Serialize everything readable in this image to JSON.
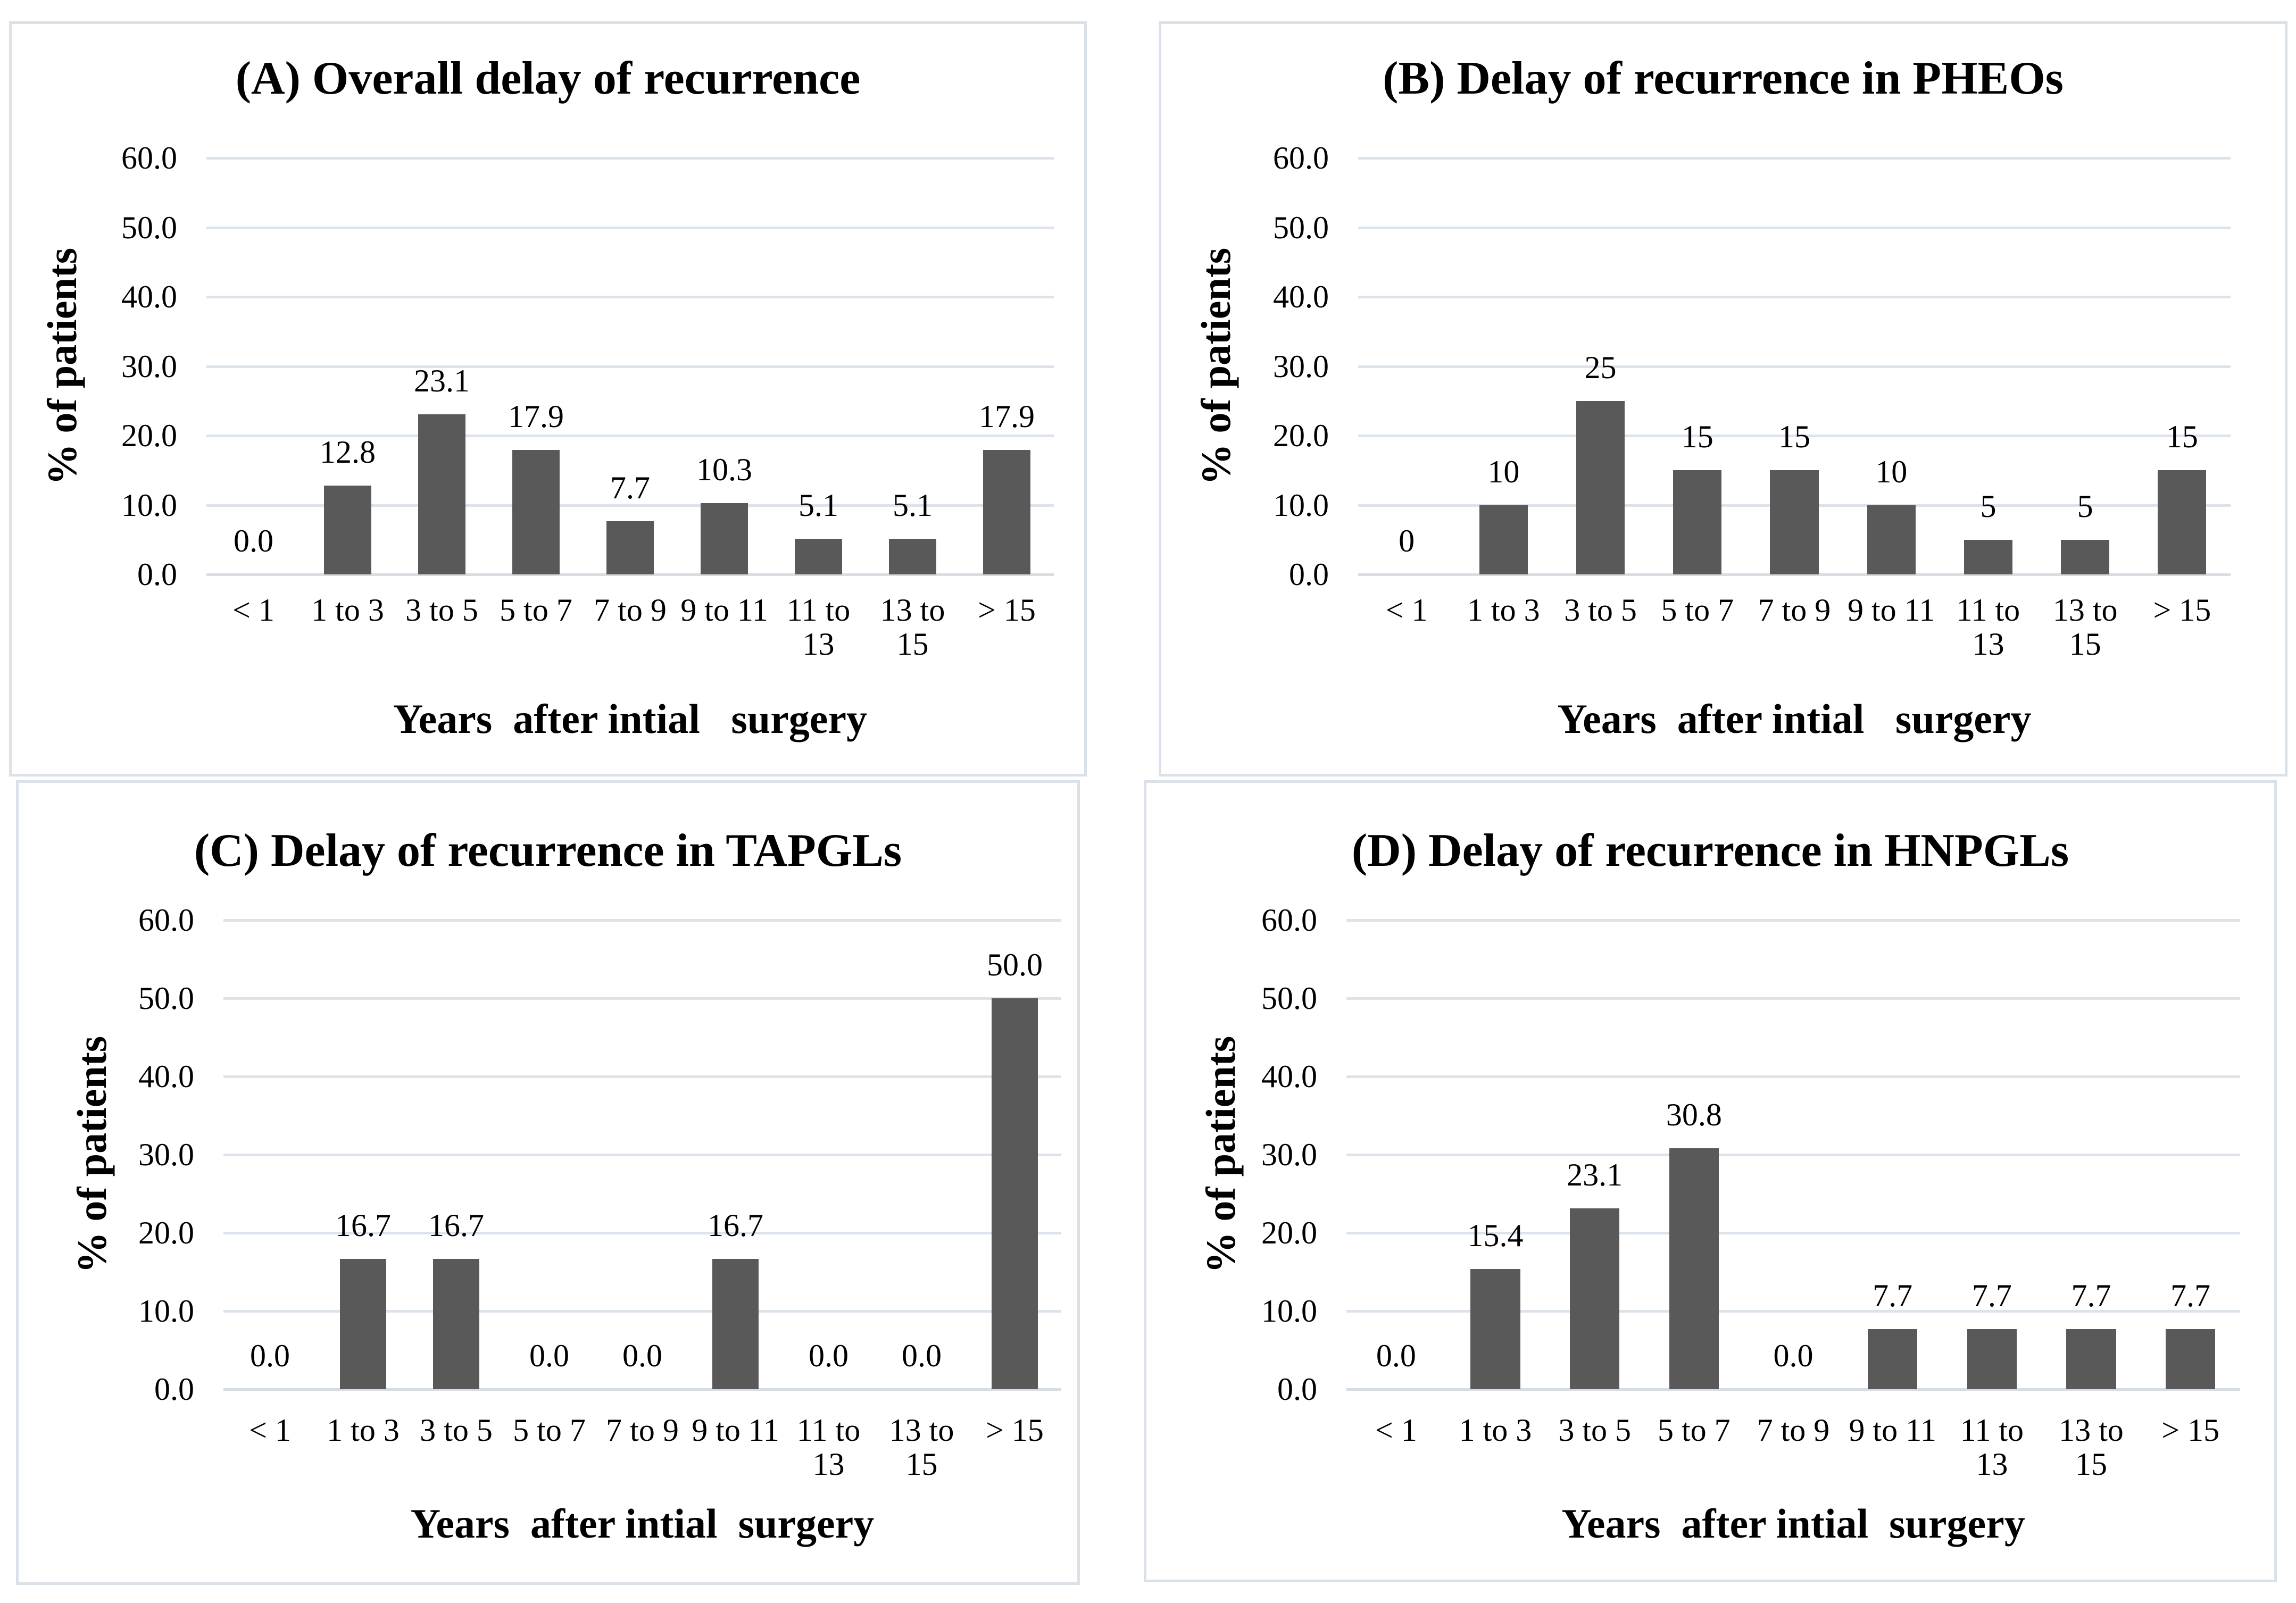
{
  "figure": {
    "background": "#ffffff"
  },
  "colors": {
    "bar": "#595959",
    "gridline": "#dce3eb",
    "baseline": "#d8dde3",
    "panel_border": "#dbe1e9",
    "text": "#000000"
  },
  "chart_data": [
    {
      "id": "A",
      "type": "bar",
      "title": "(A) Overall delay of recurrence",
      "ylabel": "% of patients",
      "xlabel": "Years  after intial   surgery",
      "ylim": [
        0,
        60
      ],
      "ytick_step": 10,
      "ytick_labels": [
        "60.0",
        "50.0",
        "40.0",
        "30.0",
        "20.0",
        "10.0",
        "0.0"
      ],
      "grid": true,
      "legend": false,
      "categories": [
        "< 1",
        "1 to 3",
        "3 to 5",
        "5 to 7",
        "7 to 9",
        "9 to 11",
        "11 to\n13",
        "13 to\n15",
        "> 15"
      ],
      "values": [
        0,
        12.8,
        23.1,
        17.9,
        7.7,
        10.3,
        5.1,
        5.1,
        17.9
      ],
      "value_labels": [
        "0.0",
        "12.8",
        "23.1",
        "17.9",
        "7.7",
        "10.3",
        "5.1",
        "5.1",
        "17.9"
      ]
    },
    {
      "id": "B",
      "type": "bar",
      "title": "(B) Delay of recurrence in PHEOs",
      "ylabel": "% of patients",
      "xlabel": "Years  after intial   surgery",
      "ylim": [
        0,
        60
      ],
      "ytick_step": 10,
      "ytick_labels": [
        "60.0",
        "50.0",
        "40.0",
        "30.0",
        "20.0",
        "10.0",
        "0.0"
      ],
      "grid": true,
      "legend": false,
      "categories": [
        "< 1",
        "1 to 3",
        "3 to 5",
        "5 to 7",
        "7 to 9",
        "9 to 11",
        "11 to\n13",
        "13 to\n15",
        "> 15"
      ],
      "values": [
        0,
        10,
        25,
        15,
        15,
        10,
        5,
        5,
        15
      ],
      "value_labels": [
        "0",
        "10",
        "25",
        "15",
        "15",
        "10",
        "5",
        "5",
        "15"
      ]
    },
    {
      "id": "C",
      "type": "bar",
      "title": "(C) Delay of recurrence in TAPGLs",
      "ylabel": "% of patients",
      "xlabel": "Years  after intial  surgery",
      "ylim": [
        0,
        60
      ],
      "ytick_step": 10,
      "ytick_labels": [
        "60.0",
        "50.0",
        "40.0",
        "30.0",
        "20.0",
        "10.0",
        "0.0"
      ],
      "grid": true,
      "legend": false,
      "categories": [
        "< 1",
        "1 to 3",
        "3 to 5",
        "5 to 7",
        "7 to 9",
        "9 to 11",
        "11 to\n13",
        "13 to\n15",
        "> 15"
      ],
      "values": [
        0,
        16.7,
        16.7,
        0,
        0,
        16.7,
        0,
        0,
        50
      ],
      "value_labels": [
        "0.0",
        "16.7",
        "16.7",
        "0.0",
        "0.0",
        "16.7",
        "0.0",
        "0.0",
        "50.0"
      ]
    },
    {
      "id": "D",
      "type": "bar",
      "title": "(D) Delay of recurrence in HNPGLs",
      "ylabel": "% of patients",
      "xlabel": "Years  after intial  surgery",
      "ylim": [
        0,
        60
      ],
      "ytick_step": 10,
      "ytick_labels": [
        "60.0",
        "50.0",
        "40.0",
        "30.0",
        "20.0",
        "10.0",
        "0.0"
      ],
      "grid": true,
      "legend": false,
      "categories": [
        "< 1",
        "1 to 3",
        "3 to 5",
        "5 to 7",
        "7 to 9",
        "9 to 11",
        "11 to\n13",
        "13 to\n15",
        "> 15"
      ],
      "values": [
        0,
        15.4,
        23.1,
        30.8,
        0,
        7.7,
        7.7,
        7.7,
        7.7
      ],
      "value_labels": [
        "0.0",
        "15.4",
        "23.1",
        "30.8",
        "0.0",
        "7.7",
        "7.7",
        "7.7",
        "7.7"
      ]
    }
  ]
}
